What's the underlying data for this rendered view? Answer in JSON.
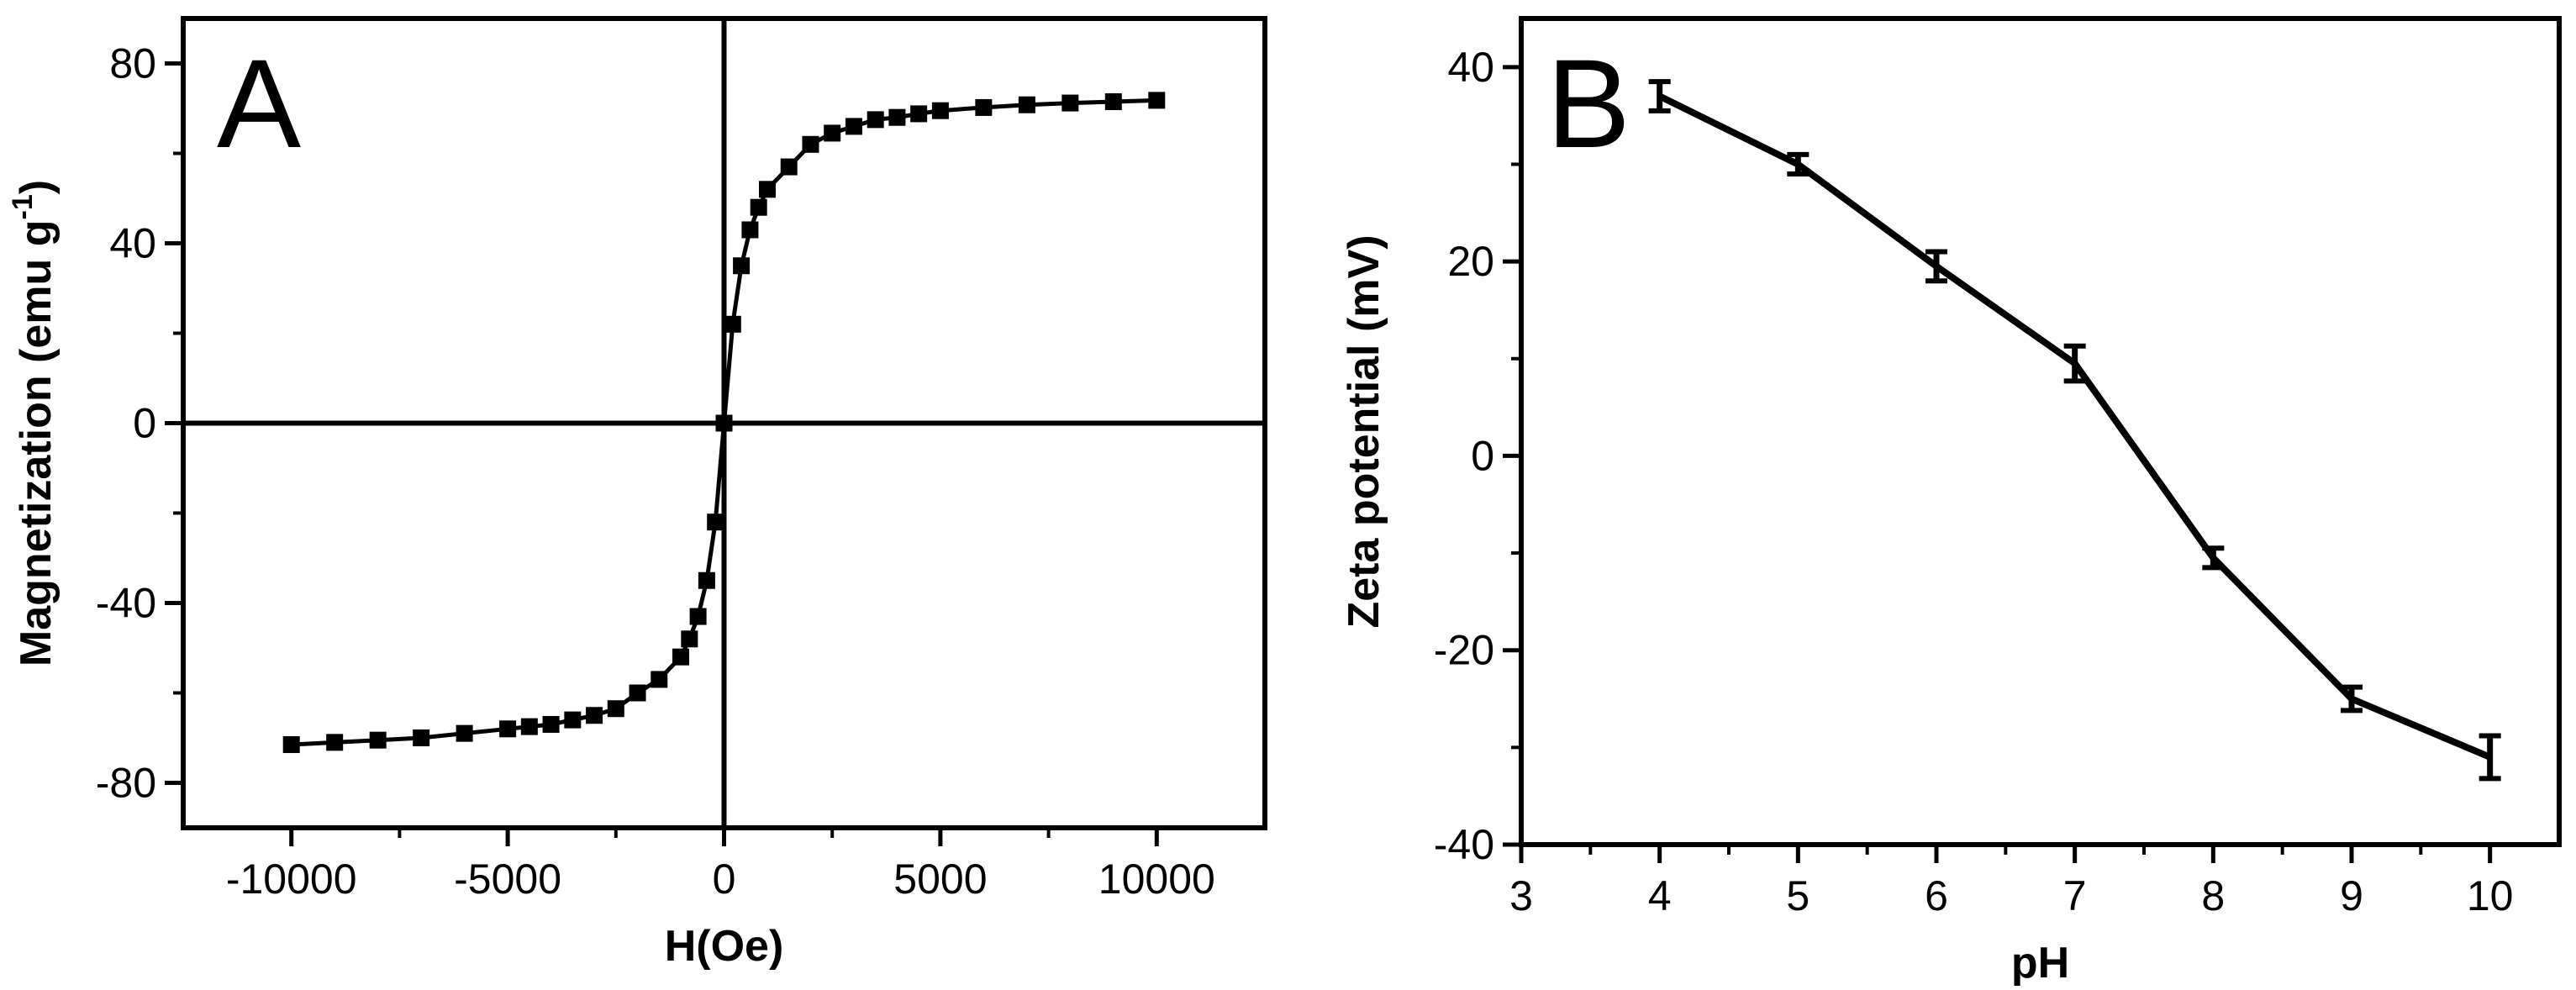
{
  "chart_data": [
    {
      "type": "scatter",
      "panel_label": "A",
      "xlabel": "H(Oe)",
      "ylabel": "Magnetization (emu g",
      "ylabel_superscript": "-1",
      "ylabel_close": ")",
      "xlim": [
        -12500,
        12500
      ],
      "ylim": [
        -90,
        90
      ],
      "x_ticks": [
        -10000,
        -5000,
        0,
        5000,
        10000
      ],
      "x_tick_labels": [
        "-10000",
        "-5000",
        "0",
        "5000",
        "10000"
      ],
      "y_ticks": [
        -80,
        -40,
        0,
        40,
        80
      ],
      "y_tick_labels": [
        "-80",
        "-40",
        "0",
        "40",
        "80"
      ],
      "zero_lines": true,
      "grid": false,
      "series": [
        {
          "marker": "square",
          "connected": true,
          "color": "#000000",
          "points": [
            [
              -10000,
              -71.5
            ],
            [
              -9000,
              -71.0
            ],
            [
              -8000,
              -70.5
            ],
            [
              -7000,
              -70.0
            ],
            [
              -6000,
              -69.0
            ],
            [
              -5000,
              -68.0
            ],
            [
              -4500,
              -67.5
            ],
            [
              -4000,
              -67.0
            ],
            [
              -3500,
              -66.0
            ],
            [
              -3000,
              -65.0
            ],
            [
              -2500,
              -63.5
            ],
            [
              -2000,
              -60.0
            ],
            [
              -1500,
              -57.0
            ],
            [
              -1000,
              -52.0
            ],
            [
              -800,
              -48.0
            ],
            [
              -600,
              -43.0
            ],
            [
              -400,
              -35.0
            ],
            [
              -200,
              -22.0
            ],
            [
              0,
              0
            ],
            [
              200,
              22.0
            ],
            [
              400,
              35.0
            ],
            [
              600,
              43.0
            ],
            [
              800,
              48.0
            ],
            [
              1000,
              52.0
            ],
            [
              1500,
              57.0
            ],
            [
              2000,
              62.0
            ],
            [
              2500,
              64.5
            ],
            [
              3000,
              66.0
            ],
            [
              3500,
              67.5
            ],
            [
              4000,
              68.0
            ],
            [
              4500,
              68.8
            ],
            [
              5000,
              69.5
            ],
            [
              6000,
              70.2
            ],
            [
              7000,
              70.8
            ],
            [
              8000,
              71.2
            ],
            [
              9000,
              71.5
            ],
            [
              10000,
              71.8
            ]
          ]
        }
      ]
    },
    {
      "type": "line",
      "panel_label": "B",
      "xlabel": "pH",
      "ylabel": "Zeta potential (mV)",
      "xlim": [
        3,
        10.5
      ],
      "ylim": [
        -40,
        45
      ],
      "x_ticks": [
        3,
        4,
        5,
        6,
        7,
        8,
        9,
        10
      ],
      "x_tick_labels": [
        "3",
        "4",
        "5",
        "6",
        "7",
        "8",
        "9",
        "10"
      ],
      "y_ticks": [
        -40,
        -20,
        0,
        20,
        40
      ],
      "y_tick_labels": [
        "-40",
        "-20",
        "0",
        "20",
        "40"
      ],
      "grid": false,
      "series": [
        {
          "color": "#000000",
          "x": [
            4,
            5,
            6,
            7,
            8,
            9,
            10
          ],
          "y": [
            37,
            30,
            19.5,
            9.5,
            -10.5,
            -25,
            -31
          ],
          "error": [
            1.5,
            1.0,
            1.5,
            1.8,
            1.0,
            1.2,
            2.2
          ]
        }
      ]
    }
  ]
}
